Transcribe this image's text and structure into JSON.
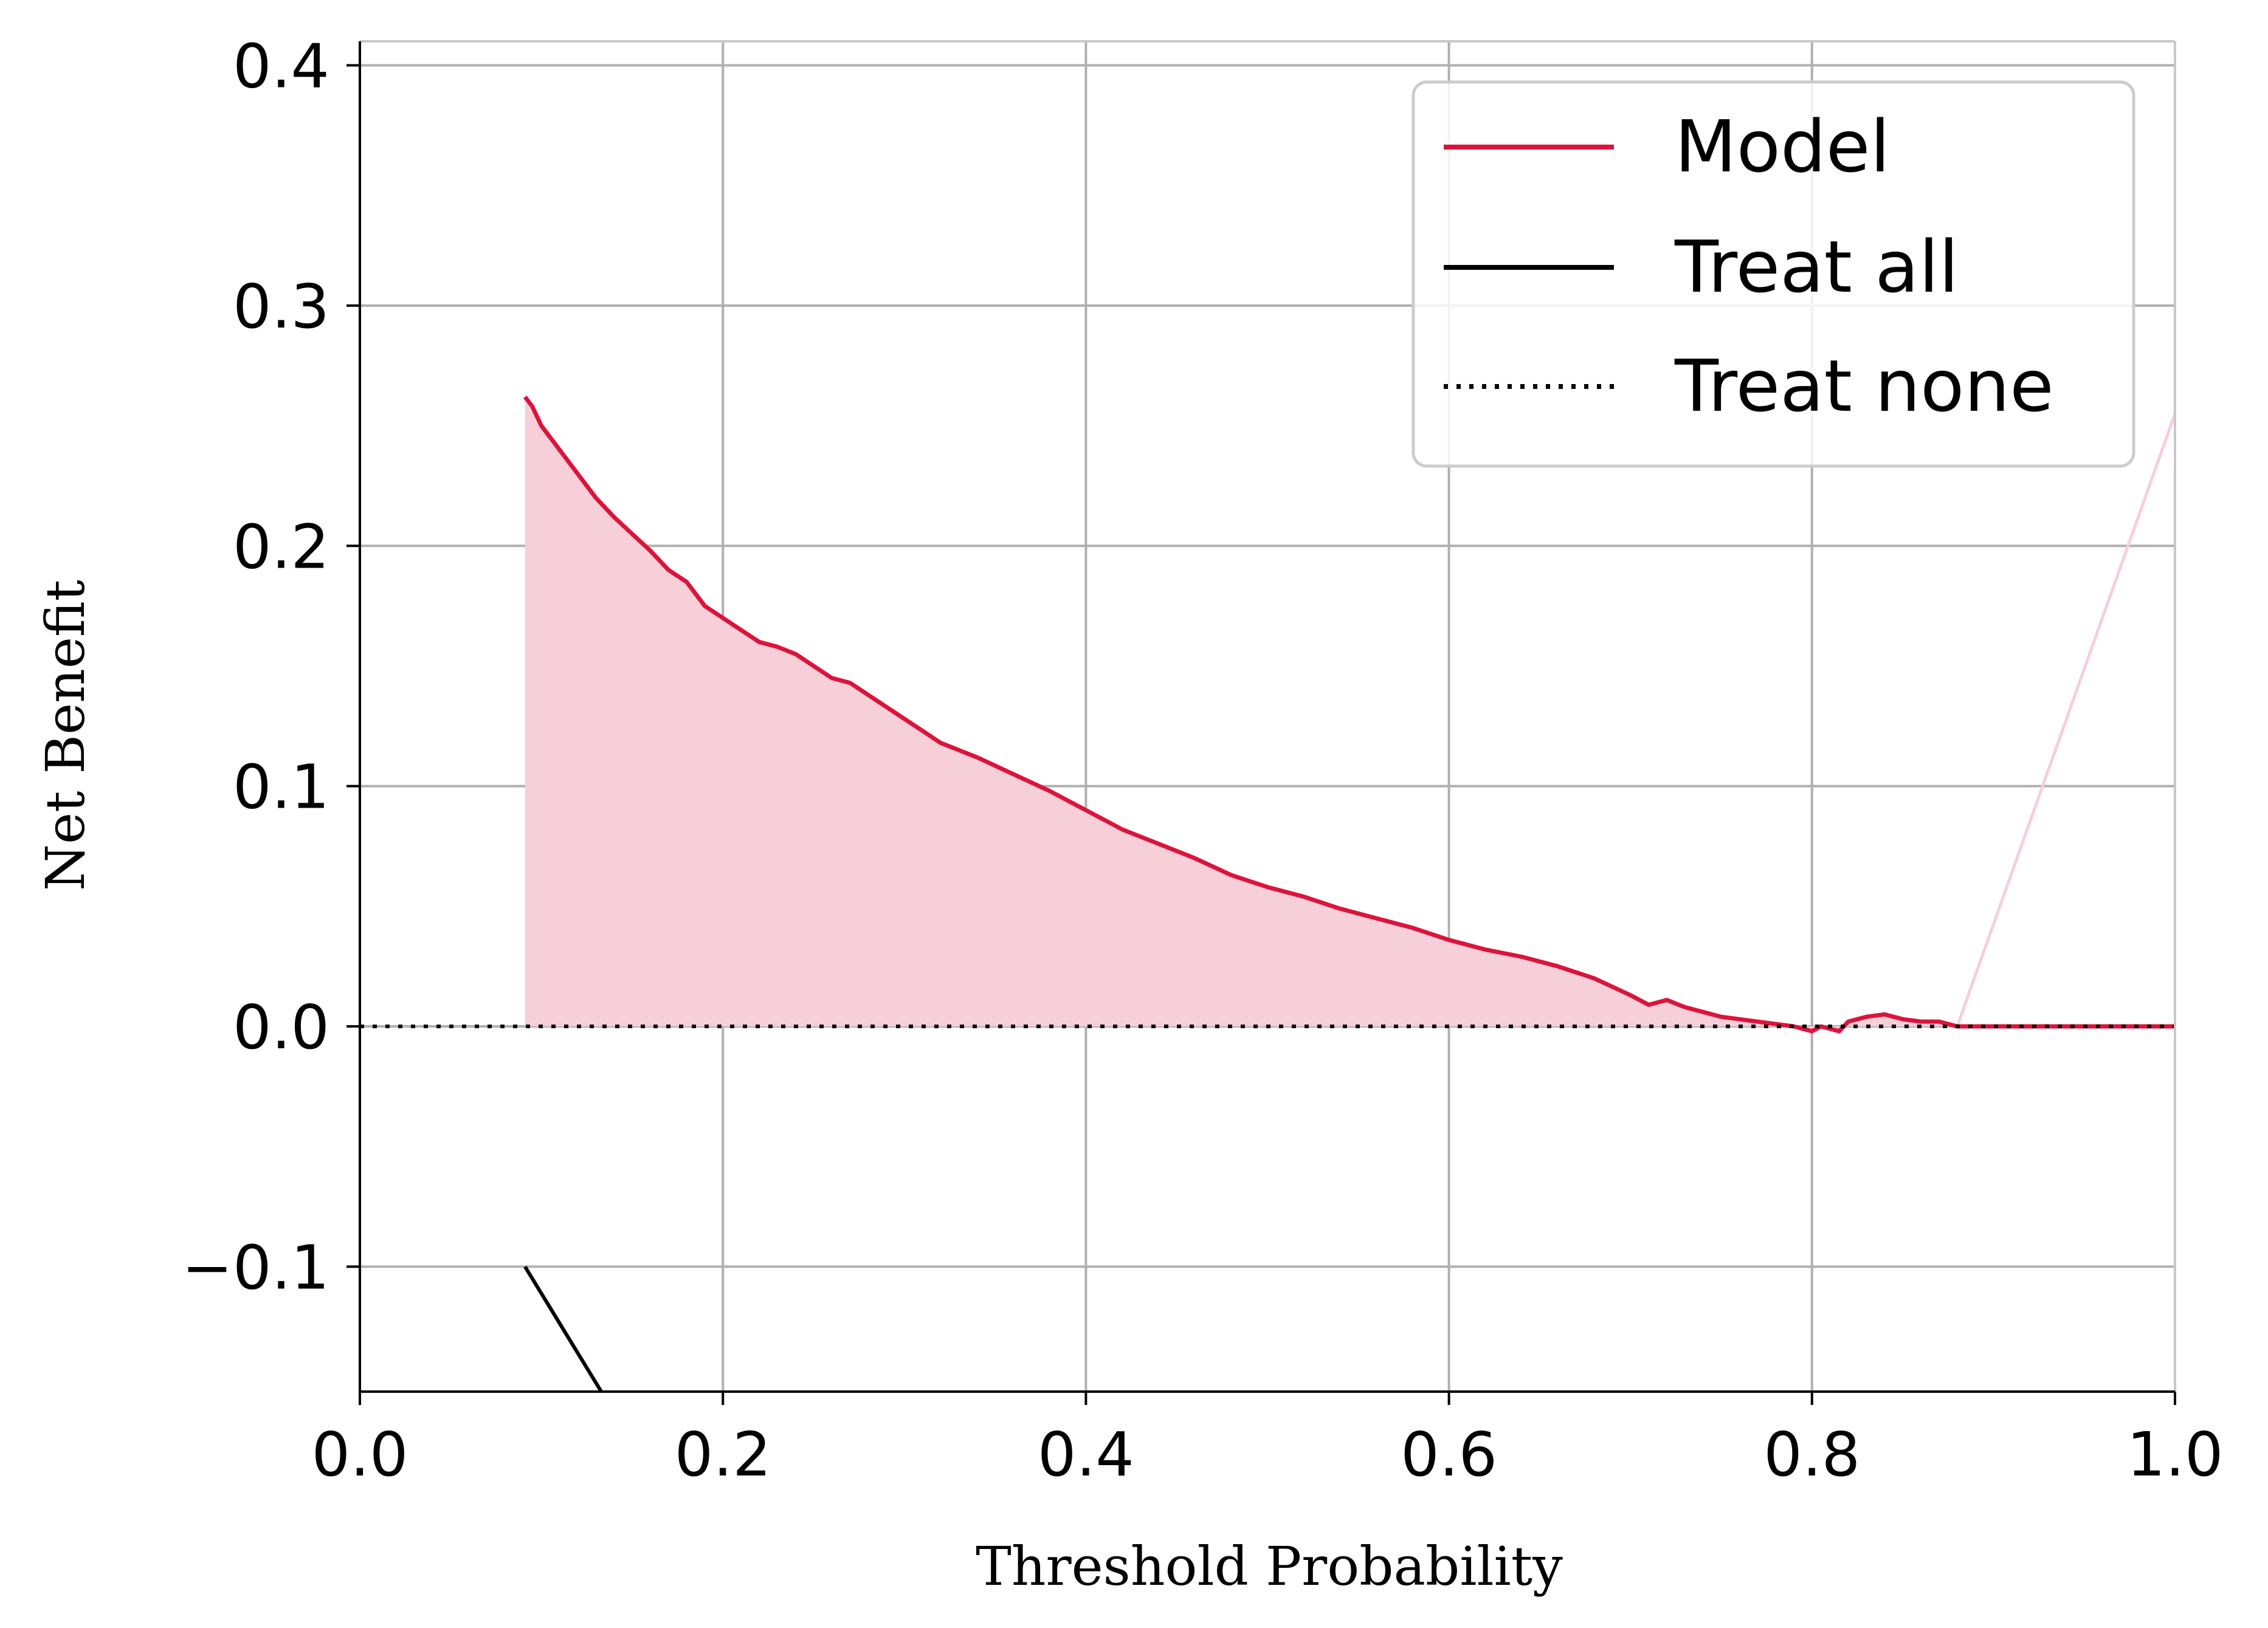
{
  "chart_data": {
    "type": "line",
    "xlabel": "Threshold Probability",
    "ylabel": "Net Benefit",
    "xlim": [
      0.0,
      1.0
    ],
    "ylim": [
      -0.152,
      0.41
    ],
    "grid": true,
    "legend_position": "top-right",
    "x_ticks": [
      "0.0",
      "0.2",
      "0.4",
      "0.6",
      "0.8",
      "1.0"
    ],
    "y_ticks": [
      "−0.1",
      "0.0",
      "0.1",
      "0.2",
      "0.3",
      "0.4"
    ],
    "series": [
      {
        "name": "Model",
        "color": "#dc143c",
        "fill_color": "#f7cfd8",
        "style": "solid",
        "x": [
          0.091,
          0.095,
          0.1,
          0.11,
          0.12,
          0.13,
          0.14,
          0.15,
          0.16,
          0.17,
          0.18,
          0.19,
          0.2,
          0.21,
          0.22,
          0.23,
          0.24,
          0.25,
          0.26,
          0.27,
          0.28,
          0.29,
          0.3,
          0.32,
          0.34,
          0.36,
          0.38,
          0.4,
          0.42,
          0.44,
          0.46,
          0.48,
          0.5,
          0.52,
          0.54,
          0.56,
          0.58,
          0.6,
          0.62,
          0.64,
          0.66,
          0.68,
          0.7,
          0.71,
          0.72,
          0.73,
          0.74,
          0.75,
          0.76,
          0.77,
          0.78,
          0.79,
          0.8,
          0.805,
          0.81,
          0.815,
          0.82,
          0.83,
          0.84,
          0.85,
          0.86,
          0.87,
          0.88,
          0.9,
          0.95,
          1.0
        ],
        "y": [
          0.262,
          0.258,
          0.25,
          0.24,
          0.23,
          0.22,
          0.212,
          0.205,
          0.198,
          0.19,
          0.185,
          0.175,
          0.17,
          0.165,
          0.16,
          0.158,
          0.155,
          0.15,
          0.145,
          0.143,
          0.138,
          0.133,
          0.128,
          0.118,
          0.112,
          0.105,
          0.098,
          0.09,
          0.082,
          0.076,
          0.07,
          0.063,
          0.058,
          0.054,
          0.049,
          0.045,
          0.041,
          0.036,
          0.032,
          0.029,
          0.025,
          0.02,
          0.013,
          0.009,
          0.011,
          0.008,
          0.006,
          0.004,
          0.003,
          0.002,
          0.001,
          0.0,
          -0.002,
          0.0,
          -0.001,
          -0.002,
          0.002,
          0.004,
          0.005,
          0.003,
          0.002,
          0.002,
          0.0,
          0.0,
          0.0,
          0.0
        ]
      },
      {
        "name": "Treat all",
        "color": "#000000",
        "style": "solid",
        "x": [
          0.091,
          0.133
        ],
        "y": [
          -0.1,
          -0.152
        ]
      },
      {
        "name": "Treat none",
        "color": "#000000",
        "style": "dotted",
        "x": [
          0.0,
          1.0
        ],
        "y": [
          0.0,
          0.0
        ]
      }
    ],
    "extra_line": {
      "color": "#f7cfd8",
      "x": [
        0.88,
        1.0
      ],
      "y": [
        0.0,
        0.255
      ]
    }
  }
}
